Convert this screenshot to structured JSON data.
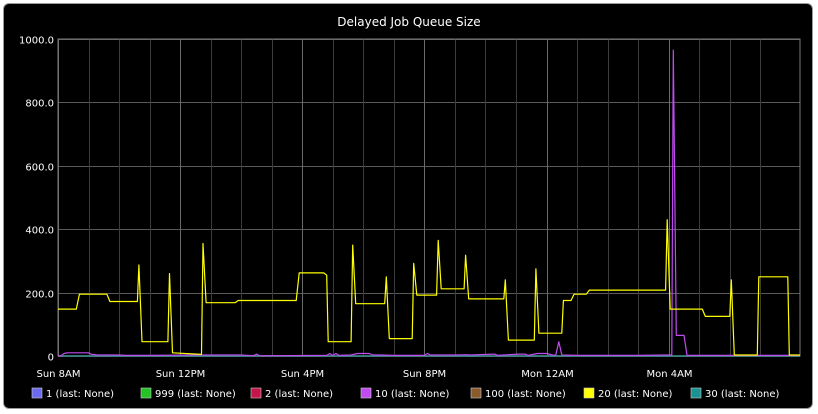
{
  "chart_data": {
    "type": "line",
    "title": "Delayed Job Queue Size",
    "xlabel": "",
    "ylabel": "",
    "xlim": [
      0,
      24.3
    ],
    "ylim": [
      0,
      1000
    ],
    "y_ticks": [
      0,
      200,
      400,
      600,
      800,
      1000
    ],
    "y_tick_labels": [
      "0",
      "200.0",
      "400.0",
      "600.0",
      "800.0",
      "1000.0"
    ],
    "x_ticks": [
      0,
      4,
      8,
      12,
      16,
      20
    ],
    "x_tick_labels": [
      "Sun  8AM",
      "Sun 12PM",
      "Sun  4PM",
      "Sun  8PM",
      "Mon 12AM",
      "Mon  4AM"
    ],
    "x_minor_ticks": [
      1,
      2,
      3,
      5,
      6,
      7,
      9,
      10,
      11,
      13,
      14,
      15,
      17,
      18,
      19,
      21,
      22,
      23
    ],
    "grid": true,
    "legend_position": "bottom",
    "series": [
      {
        "name": "1 (last: None)",
        "color": "#6b6bef",
        "points": [
          [
            0,
            0
          ],
          [
            24.3,
            0
          ]
        ]
      },
      {
        "name": "999 (last: None)",
        "color": "#22c322",
        "points": [
          [
            0,
            0
          ],
          [
            24.3,
            0
          ]
        ]
      },
      {
        "name": "2 (last: None)",
        "color": "#c5154a",
        "points": [
          [
            0,
            0
          ],
          [
            24.3,
            0
          ]
        ]
      },
      {
        "name": "10 (last: None)",
        "color": "#c04bf0",
        "points": [
          [
            0,
            0
          ],
          [
            0.1,
            1
          ],
          [
            0.2,
            8
          ],
          [
            0.3,
            10
          ],
          [
            0.7,
            10
          ],
          [
            1.0,
            10
          ],
          [
            1.1,
            5
          ],
          [
            1.3,
            3
          ],
          [
            2.0,
            3
          ],
          [
            2.2,
            2
          ],
          [
            3.0,
            2
          ],
          [
            4.6,
            3
          ],
          [
            5.0,
            3
          ],
          [
            6.0,
            3
          ],
          [
            6.4,
            1
          ],
          [
            6.5,
            6
          ],
          [
            6.6,
            1
          ],
          [
            7.0,
            1
          ],
          [
            8.8,
            2
          ],
          [
            8.9,
            8
          ],
          [
            9.0,
            2
          ],
          [
            9.1,
            8
          ],
          [
            9.2,
            2
          ],
          [
            9.6,
            3
          ],
          [
            9.8,
            8
          ],
          [
            10.2,
            8
          ],
          [
            10.3,
            3
          ],
          [
            10.6,
            3
          ],
          [
            11.0,
            2
          ],
          [
            12.0,
            2
          ],
          [
            12.1,
            8
          ],
          [
            12.2,
            3
          ],
          [
            13.0,
            3
          ],
          [
            13.4,
            4
          ],
          [
            13.5,
            3
          ],
          [
            14.3,
            6
          ],
          [
            14.4,
            2
          ],
          [
            14.6,
            3
          ],
          [
            15.1,
            6
          ],
          [
            15.3,
            6
          ],
          [
            15.4,
            2
          ],
          [
            15.7,
            8
          ],
          [
            16.0,
            8
          ],
          [
            16.2,
            3
          ],
          [
            16.3,
            2
          ],
          [
            16.4,
            45
          ],
          [
            16.5,
            3
          ],
          [
            17.0,
            2
          ],
          [
            19.0,
            2
          ],
          [
            19.9,
            3
          ],
          [
            20.1,
            3
          ],
          [
            20.15,
            965
          ],
          [
            20.25,
            65
          ],
          [
            20.5,
            65
          ],
          [
            20.6,
            2
          ],
          [
            21.0,
            2
          ],
          [
            24.3,
            2
          ]
        ]
      },
      {
        "name": "100 (last: None)",
        "color": "#8b5a2b",
        "points": [
          [
            0,
            0
          ],
          [
            24.3,
            0
          ]
        ]
      },
      {
        "name": "20 (last: None)",
        "color": "#ffff00",
        "points": [
          [
            -0.1,
            148
          ],
          [
            0.6,
            148
          ],
          [
            0.7,
            195
          ],
          [
            1.6,
            195
          ],
          [
            1.7,
            172
          ],
          [
            2.6,
            172
          ],
          [
            2.65,
            287
          ],
          [
            2.75,
            45
          ],
          [
            3.6,
            45
          ],
          [
            3.65,
            260
          ],
          [
            3.75,
            10
          ],
          [
            4.7,
            5
          ],
          [
            4.75,
            355
          ],
          [
            4.85,
            168
          ],
          [
            5.8,
            168
          ],
          [
            5.9,
            175
          ],
          [
            7.8,
            175
          ],
          [
            7.9,
            262
          ],
          [
            8.7,
            262
          ],
          [
            8.8,
            255
          ],
          [
            8.85,
            45
          ],
          [
            9.6,
            45
          ],
          [
            9.65,
            350
          ],
          [
            9.75,
            165
          ],
          [
            10.7,
            165
          ],
          [
            10.75,
            250
          ],
          [
            10.85,
            55
          ],
          [
            11.6,
            55
          ],
          [
            11.65,
            292
          ],
          [
            11.75,
            192
          ],
          [
            12.4,
            192
          ],
          [
            12.45,
            365
          ],
          [
            12.55,
            212
          ],
          [
            13.3,
            212
          ],
          [
            13.35,
            318
          ],
          [
            13.45,
            180
          ],
          [
            14.6,
            180
          ],
          [
            14.65,
            240
          ],
          [
            14.75,
            50
          ],
          [
            15.6,
            50
          ],
          [
            15.65,
            275
          ],
          [
            15.75,
            72
          ],
          [
            16.5,
            72
          ],
          [
            16.55,
            175
          ],
          [
            16.8,
            175
          ],
          [
            16.9,
            195
          ],
          [
            17.3,
            195
          ],
          [
            17.4,
            208
          ],
          [
            19.9,
            208
          ],
          [
            19.95,
            430
          ],
          [
            20.05,
            148
          ],
          [
            21.1,
            148
          ],
          [
            21.2,
            125
          ],
          [
            22.0,
            125
          ],
          [
            22.05,
            240
          ],
          [
            22.15,
            3
          ],
          [
            22.9,
            3
          ],
          [
            22.95,
            250
          ],
          [
            23.9,
            250
          ],
          [
            23.95,
            3
          ],
          [
            24.3,
            3
          ]
        ]
      },
      {
        "name": "30 (last: None)",
        "color": "#1a9292",
        "points": [
          [
            0,
            0
          ],
          [
            24.3,
            0
          ]
        ]
      }
    ]
  }
}
